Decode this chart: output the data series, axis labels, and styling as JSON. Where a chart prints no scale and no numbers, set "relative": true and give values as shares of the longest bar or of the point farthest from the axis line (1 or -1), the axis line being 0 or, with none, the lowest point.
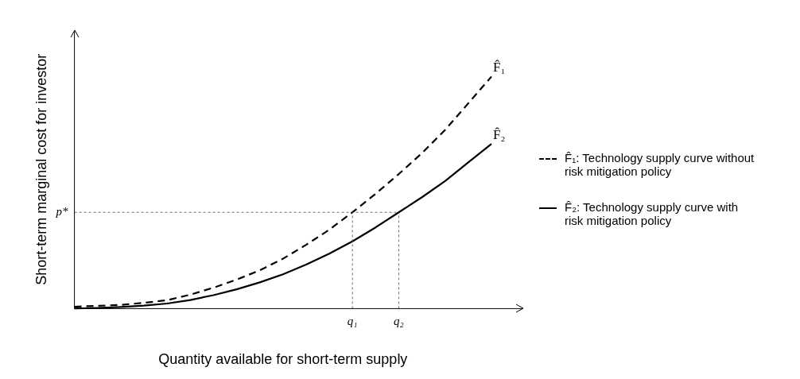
{
  "chart_data": {
    "type": "line",
    "relative": true,
    "xlabel": "Quantity available for short-term supply",
    "ylabel": "Short-term marginal cost for investor",
    "categories": [
      null,
      null,
      null,
      null,
      null,
      null,
      null,
      null,
      null,
      null,
      null,
      null,
      "q₁",
      null,
      "q₂",
      null,
      null,
      null,
      null
    ],
    "tick_labels": "x",
    "grid": false,
    "legend": "right",
    "marker": "none",
    "series": [
      {
        "name": "F̂₁: Technology supply curve without risk mitigation policy",
        "color": "#000000",
        "line_style": "dashed",
        "values": [
          0.008,
          0.012,
          0.016,
          0.025,
          0.036,
          0.06,
          0.09,
          0.125,
          0.165,
          0.215,
          0.275,
          0.34,
          0.415,
          0.495,
          0.58,
          0.67,
          0.77,
          0.885,
          1
        ]
      },
      {
        "name": "F̂₂: Technology supply curve with risk mitigation policy",
        "color": "#000000",
        "line_style": "solid",
        "values": [
          0,
          0.003,
          0.007,
          0.013,
          0.022,
          0.037,
          0.058,
          0.083,
          0.113,
          0.148,
          0.19,
          0.237,
          0.29,
          0.35,
          0.415,
          0.48,
          0.55,
          0.63,
          0.71
        ]
      }
    ],
    "ref_lines": [
      {
        "axis": "y",
        "value": 0.415,
        "label": "p*"
      },
      {
        "axis": "x",
        "value": "q₁"
      },
      {
        "axis": "x",
        "value": "q₂"
      }
    ],
    "annotations": [
      "F̂₁",
      "F̂₂"
    ]
  }
}
